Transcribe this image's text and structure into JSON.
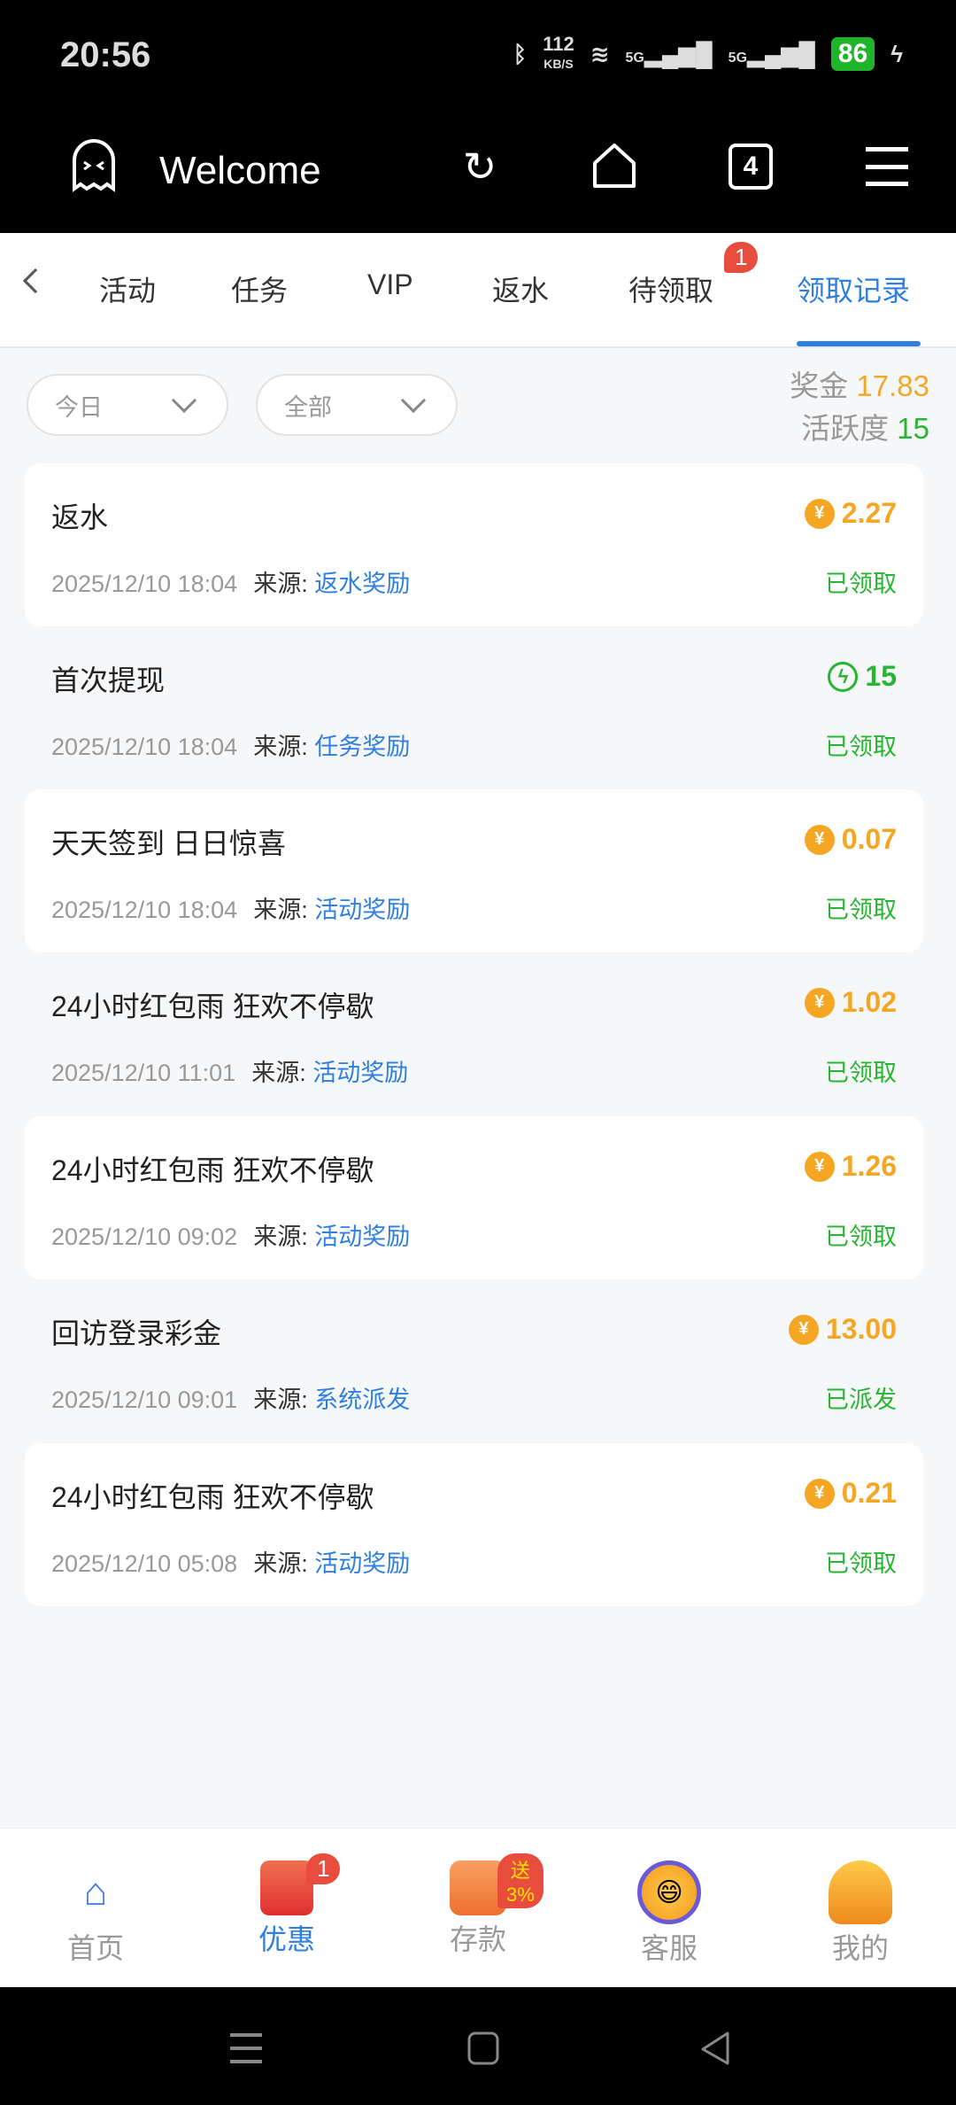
{
  "status_bar": {
    "time": "20:56",
    "net_speed": "112",
    "net_unit": "KB/S",
    "signal1": "5G",
    "signal2": "5G",
    "battery": "86"
  },
  "app_bar": {
    "title": "Welcome",
    "tab_count": "4"
  },
  "tabs": [
    {
      "label": "活动"
    },
    {
      "label": "任务"
    },
    {
      "label": "VIP"
    },
    {
      "label": "返水"
    },
    {
      "label": "待领取",
      "badge": "1"
    },
    {
      "label": "领取记录",
      "active": true
    }
  ],
  "filters": {
    "date": "今日",
    "type": "全部"
  },
  "stats": {
    "bonus_label": "奖金",
    "bonus_value": "17.83",
    "activity_label": "活跃度",
    "activity_value": "15",
    "bonus_color": "#f5a623",
    "activity_color": "#28b531"
  },
  "source_label": "来源:",
  "records": [
    {
      "title": "返水",
      "time": "2025/12/10 18:04",
      "source": "返水奖励",
      "amount": "2.27",
      "kind": "coin",
      "status": "已领取"
    },
    {
      "title": "首次提现",
      "time": "2025/12/10 18:04",
      "source": "任务奖励",
      "amount": "15",
      "kind": "activity",
      "status": "已领取"
    },
    {
      "title": "天天签到 日日惊喜",
      "time": "2025/12/10 18:04",
      "source": "活动奖励",
      "amount": "0.07",
      "kind": "coin",
      "status": "已领取"
    },
    {
      "title": "24小时红包雨 狂欢不停歇",
      "time": "2025/12/10 11:01",
      "source": "活动奖励",
      "amount": "1.02",
      "kind": "coin",
      "status": "已领取"
    },
    {
      "title": "24小时红包雨 狂欢不停歇",
      "time": "2025/12/10 09:02",
      "source": "活动奖励",
      "amount": "1.26",
      "kind": "coin",
      "status": "已领取"
    },
    {
      "title": "回访登录彩金",
      "time": "2025/12/10 09:01",
      "source": "系统派发",
      "amount": "13.00",
      "kind": "coin",
      "status": "已派发"
    },
    {
      "title": "24小时红包雨 狂欢不停歇",
      "time": "2025/12/10 05:08",
      "source": "活动奖励",
      "amount": "0.21",
      "kind": "coin",
      "status": "已领取"
    }
  ],
  "bottom_nav": [
    {
      "label": "首页",
      "icon": "house-icon"
    },
    {
      "label": "优惠",
      "icon": "gift-icon",
      "badge": "1",
      "active": true
    },
    {
      "label": "存款",
      "icon": "wallet-icon",
      "badge": "送3%"
    },
    {
      "label": "客服",
      "icon": "headset-icon"
    },
    {
      "label": "我的",
      "icon": "profile-icon"
    }
  ]
}
